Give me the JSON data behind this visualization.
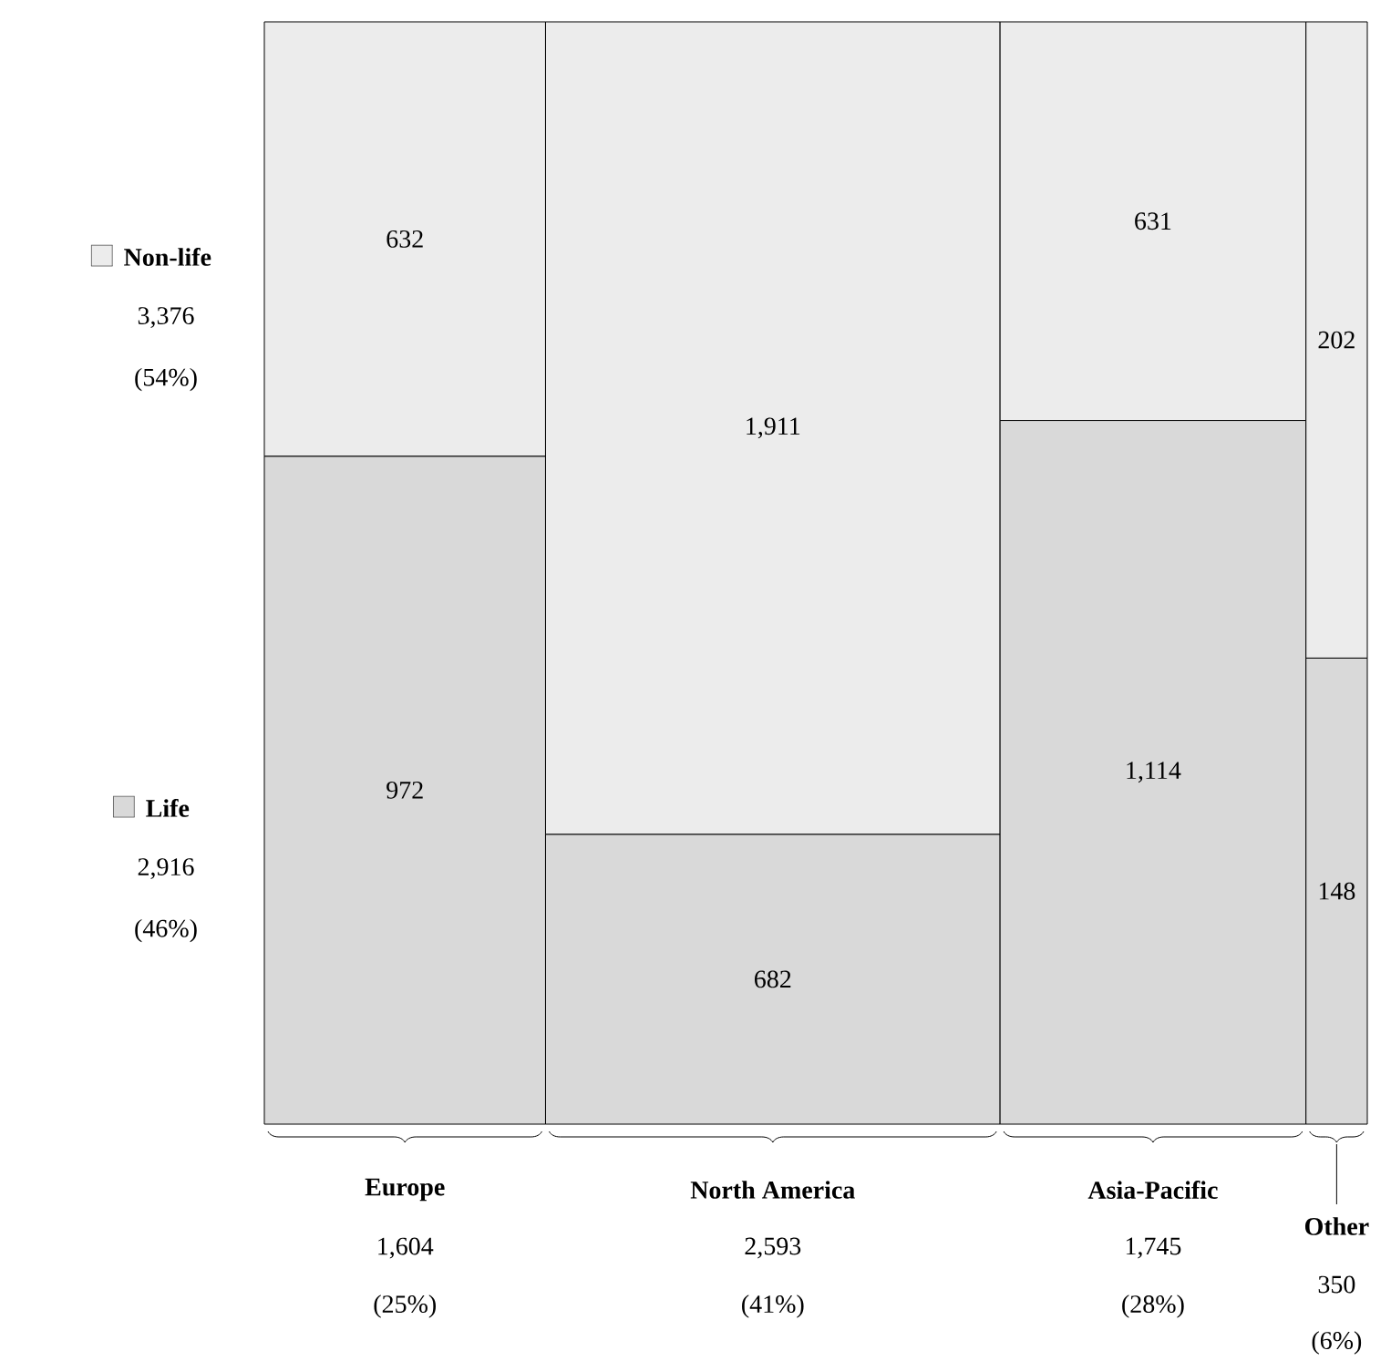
{
  "chart_data": {
    "type": "other",
    "categories": [
      "Europe",
      "North America",
      "Asia-Pacific",
      "Other"
    ],
    "series": [
      {
        "name": "Life",
        "color": "#d9d9d9",
        "values": [
          972,
          682,
          1114,
          148
        ],
        "value_labels": [
          "972",
          "682",
          "1,114",
          "148"
        ]
      },
      {
        "name": "Non-life",
        "color": "#ececec",
        "values": [
          632,
          1911,
          631,
          202
        ],
        "value_labels": [
          "632",
          "1,911",
          "631",
          "202"
        ]
      }
    ],
    "totals": [
      "1,604",
      "2,593",
      "1,745",
      "350"
    ],
    "annotations": [
      "2,916",
      "(46%)",
      "3,376",
      "(54%)",
      "(25%)",
      "(41%)",
      "(28%)",
      "(6%)"
    ],
    "legend": "left"
  }
}
